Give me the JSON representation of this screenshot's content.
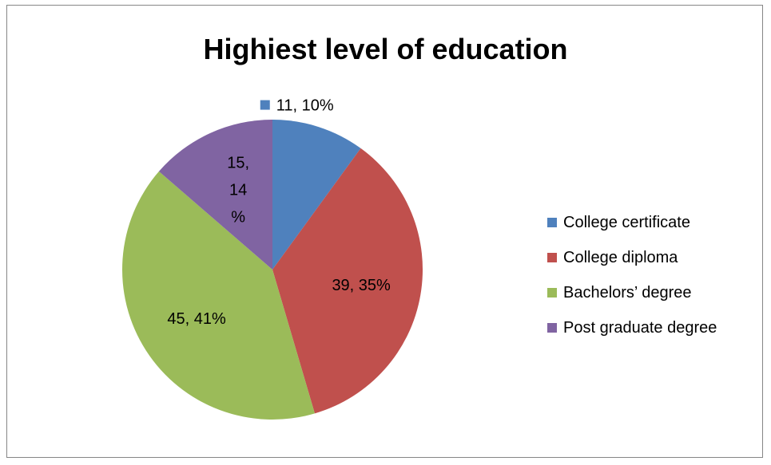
{
  "chart_data": {
    "type": "pie",
    "title": "Highiest level of education",
    "categories": [
      "College certificate",
      "College diploma",
      "Bachelors’ degree",
      "Post graduate degree"
    ],
    "values": [
      11,
      39,
      45,
      15
    ],
    "percentages": [
      10,
      35,
      41,
      14
    ],
    "data_labels": [
      "11, 10%",
      "39, 35%",
      "45, 41%",
      "15, 14 %"
    ],
    "colors": [
      "#4F81BD",
      "#C0504D",
      "#9BBB59",
      "#8064A2"
    ],
    "legend_position": "right"
  }
}
